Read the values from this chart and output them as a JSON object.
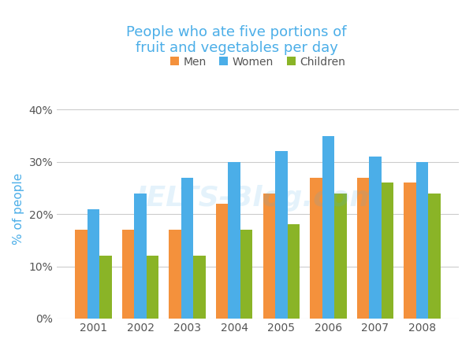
{
  "title": "People who ate five portions of\nfruit and vegetables per day",
  "ylabel": "% of people",
  "years": [
    2001,
    2002,
    2003,
    2004,
    2005,
    2006,
    2007,
    2008
  ],
  "men": [
    17,
    17,
    17,
    22,
    24,
    27,
    27,
    26
  ],
  "women": [
    21,
    24,
    27,
    30,
    32,
    35,
    31,
    30
  ],
  "children": [
    12,
    12,
    12,
    17,
    18,
    24,
    26,
    24
  ],
  "men_color": "#F4913C",
  "women_color": "#4BAEE8",
  "children_color": "#8AB427",
  "title_color": "#4BAEE8",
  "ylabel_color": "#4BAEE8",
  "yticks": [
    0,
    10,
    20,
    30,
    40
  ],
  "ytick_labels": [
    "0%",
    "10%",
    "20%",
    "30%",
    "40%"
  ],
  "ylim": [
    0,
    42
  ],
  "legend_labels": [
    "Men",
    "Women",
    "Children"
  ],
  "background_color": "#ffffff",
  "grid_color": "#cccccc",
  "bar_width": 0.26,
  "tick_color": "#555555"
}
